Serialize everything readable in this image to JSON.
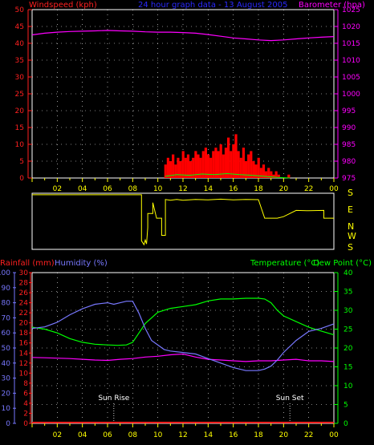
{
  "header": {
    "windspeed_label": "Windspeed (kph)",
    "title": "24 hour graph data - 13 August 2005",
    "barometer_label": "Barometer (hpa)"
  },
  "colors": {
    "background": "#000000",
    "grid": "#ffffff",
    "frame": "#ffffff",
    "wind_axis": "#ff2020",
    "title": "#2a2aff",
    "barometer": "#ff00ff",
    "wind_speed": "#ff0000",
    "wind_gust": "#00ff00",
    "direction": "#ffff00",
    "compass": "#ffff00",
    "rain_axis": "#ff2020",
    "humidity": "#7878ff",
    "temperature": "#00ff00",
    "dewpoint": "#ff00ff",
    "time_axis": "#ffff00",
    "sun_markers": "#ffffff"
  },
  "compass": [
    "S",
    "E",
    "N",
    "W",
    "S"
  ],
  "sun_markers": [
    {
      "label": "Sun Rise",
      "time": 6.5
    },
    {
      "label": "Sun Set",
      "time": 20.5
    }
  ],
  "chart_data": [
    {
      "type": "line",
      "panel": "wind-barometer",
      "title": "24 hour graph data - 13 August 2005",
      "ylabel": "Windspeed (kph)",
      "y2label": "Barometer (hpa)",
      "xlim": [
        0,
        24
      ],
      "ylim": [
        0,
        50
      ],
      "y2lim": [
        975,
        1025
      ],
      "x_ticks": [
        "02",
        "04",
        "06",
        "08",
        "10",
        "12",
        "14",
        "16",
        "18",
        "20",
        "22",
        "00"
      ],
      "grid": true,
      "series": [
        {
          "name": "Barometer (hpa)",
          "axis": "right",
          "x": [
            0,
            1,
            2,
            3,
            4,
            5,
            6,
            7,
            8,
            9,
            10,
            11,
            12,
            13,
            14,
            15,
            16,
            17,
            18,
            19,
            20,
            21,
            22,
            23,
            24
          ],
          "values": [
            1017.5,
            1018,
            1018.3,
            1018.5,
            1018.6,
            1018.7,
            1018.8,
            1018.7,
            1018.6,
            1018.4,
            1018.3,
            1018.3,
            1018.2,
            1018,
            1017.6,
            1017.1,
            1016.6,
            1016.3,
            1016,
            1015.8,
            1016,
            1016.3,
            1016.6,
            1016.8,
            1017
          ]
        },
        {
          "name": "wind speed",
          "style": "bars",
          "x": [
            10.6,
            10.8,
            11,
            11.2,
            11.4,
            11.6,
            11.8,
            12,
            12.2,
            12.4,
            12.6,
            12.8,
            13,
            13.2,
            13.4,
            13.6,
            13.8,
            14,
            14.2,
            14.4,
            14.6,
            14.8,
            15,
            15.2,
            15.4,
            15.6,
            15.8,
            16,
            16.2,
            16.4,
            16.6,
            16.8,
            17,
            17.2,
            17.4,
            17.6,
            17.8,
            18,
            18.2,
            18.4,
            18.6,
            18.8,
            19,
            19.2,
            19.4,
            19.6,
            20.4
          ],
          "values": [
            4,
            6,
            5,
            7,
            4,
            6,
            5,
            8,
            6,
            7,
            5,
            6,
            8,
            7,
            6,
            8,
            9,
            7,
            6,
            8,
            9,
            8,
            10,
            7,
            9,
            12,
            8,
            10,
            13,
            8,
            6,
            9,
            5,
            7,
            8,
            5,
            4,
            6,
            3,
            4,
            2,
            3,
            2,
            1,
            2,
            1,
            1
          ]
        },
        {
          "name": "wind gust",
          "style": "line",
          "x": [
            10.6,
            11.5,
            12.5,
            13.5,
            14.5,
            15.5,
            16.5,
            17.5,
            18.5,
            19.5,
            20.5
          ],
          "values": [
            0.5,
            1,
            0.8,
            1.2,
            1,
            1.3,
            1,
            0.8,
            0.5,
            0.2,
            0
          ]
        }
      ]
    },
    {
      "type": "line",
      "panel": "wind-direction",
      "y_labels": [
        "S",
        "E",
        "N",
        "W",
        "S"
      ],
      "y_values": [
        0,
        90,
        180,
        270,
        360
      ],
      "series": [
        {
          "name": "wind direction",
          "x": [
            0,
            8.7,
            8.7,
            8.9,
            9.0,
            9.1,
            9.2,
            9.2,
            9.6,
            9.6,
            9.9,
            10.3,
            10.3,
            10.6,
            10.6,
            11,
            11.5,
            12,
            13,
            14,
            15,
            16,
            17,
            18,
            18.5,
            19.5,
            20,
            21,
            22,
            23.2,
            23.2,
            24
          ],
          "values": [
            350,
            350,
            55,
            30,
            60,
            35,
            140,
            230,
            230,
            300,
            200,
            200,
            90,
            90,
            320,
            315,
            320,
            315,
            320,
            318,
            322,
            318,
            320,
            319,
            200,
            200,
            210,
            250,
            248,
            250,
            200,
            200
          ]
        }
      ]
    },
    {
      "type": "line",
      "panel": "temperature-humidity",
      "y1label": "Rainfall (mm)",
      "y2label": "Humidity (%)",
      "y3label": "Temperature (°C)",
      "y4label": "Dew Point (°C)",
      "xlim": [
        0,
        24
      ],
      "rain_ylim": [
        0,
        30
      ],
      "humidity_ylim": [
        0,
        100
      ],
      "temperature_ylim": [
        0,
        40
      ],
      "x_ticks": [
        "02",
        "04",
        "06",
        "08",
        "10",
        "12",
        "14",
        "16",
        "18",
        "20",
        "22",
        "00"
      ],
      "grid": true,
      "series": [
        {
          "name": "Humidity (%)",
          "axis": "humidity",
          "x": [
            0,
            1,
            2,
            3,
            4,
            5,
            6,
            6.5,
            7,
            7.5,
            8,
            8.5,
            9,
            9.5,
            10,
            10.5,
            11,
            12,
            13,
            14,
            15,
            16,
            17,
            18,
            18.5,
            19,
            19.5,
            20,
            21,
            22,
            23,
            24
          ],
          "values": [
            63,
            64,
            67,
            72,
            76,
            79,
            80,
            79,
            80,
            81,
            81,
            73,
            63,
            55,
            52,
            49,
            48,
            47,
            46,
            43,
            40,
            37,
            35,
            35,
            36,
            38,
            42,
            47,
            55,
            61,
            63,
            66
          ]
        },
        {
          "name": "Temperature (°C)",
          "axis": "temperature",
          "x": [
            0,
            1,
            2,
            3,
            4,
            5,
            6,
            6.8,
            7.5,
            8,
            8.5,
            9,
            10,
            11,
            12,
            13,
            14,
            15,
            16,
            17,
            18,
            18.5,
            19,
            19.5,
            20,
            21,
            22,
            23,
            24
          ],
          "values": [
            25.5,
            25,
            24,
            22.5,
            21.5,
            21,
            20.8,
            20.7,
            20.8,
            21.5,
            24,
            26.5,
            29.5,
            30.5,
            31,
            31.5,
            32.5,
            33,
            33,
            33.2,
            33.2,
            33,
            32,
            30,
            28.5,
            27,
            25.5,
            24.5,
            23.5
          ]
        },
        {
          "name": "Dew Point (°C)",
          "axis": "temperature",
          "x": [
            0,
            1,
            2,
            3,
            4,
            5,
            6,
            7,
            8,
            9,
            10,
            11,
            12,
            13,
            14,
            15,
            16,
            17,
            18,
            19,
            20,
            21,
            22,
            23,
            24
          ],
          "values": [
            17.5,
            17.4,
            17.3,
            17.2,
            17,
            16.8,
            16.7,
            17,
            17.2,
            17.6,
            17.8,
            18.2,
            18.4,
            17.6,
            17,
            16.8,
            16.6,
            16.4,
            16.6,
            16.6,
            16.8,
            17,
            16.6,
            16.6,
            16.4
          ]
        },
        {
          "name": "Rainfall (mm)",
          "axis": "rain",
          "x": [
            0,
            24
          ],
          "values": [
            0,
            0
          ]
        }
      ]
    }
  ]
}
